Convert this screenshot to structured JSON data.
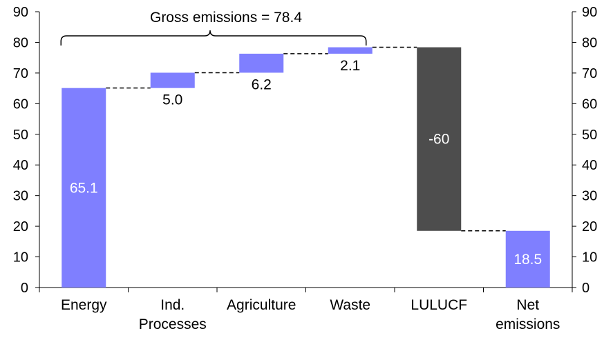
{
  "chart_data": {
    "type": "bar",
    "subtype": "waterfall",
    "title": "",
    "xlabel": "",
    "ylabel": "",
    "ylim": [
      0,
      90
    ],
    "yticks": [
      0,
      10,
      20,
      30,
      40,
      50,
      60,
      70,
      80,
      90
    ],
    "y_axes": [
      "left",
      "right"
    ],
    "grid": false,
    "legend": "none",
    "categories": [
      [
        "Energy"
      ],
      [
        "Ind.",
        "Processes"
      ],
      [
        "Agriculture"
      ],
      [
        "Waste"
      ],
      [
        "LULUCF"
      ],
      [
        "Net",
        "emissions"
      ]
    ],
    "bars": [
      {
        "start": 0,
        "end": 65.1,
        "label": "65.1",
        "label_position": "inside",
        "color": "#7f7fff"
      },
      {
        "start": 65.1,
        "end": 70.1,
        "label": "5.0",
        "label_position": "below",
        "color": "#7f7fff"
      },
      {
        "start": 70.1,
        "end": 76.3,
        "label": "6.2",
        "label_position": "below",
        "color": "#7f7fff"
      },
      {
        "start": 76.3,
        "end": 78.4,
        "label": "2.1",
        "label_position": "below",
        "color": "#7f7fff"
      },
      {
        "start": 78.4,
        "end": 18.5,
        "label": "-60",
        "label_position": "inside",
        "color": "#4d4d4d"
      },
      {
        "start": 0,
        "end": 18.5,
        "label": "18.5",
        "label_position": "inside",
        "color": "#7f7fff"
      }
    ],
    "annotation": {
      "text": "Gross emissions = 78.4",
      "spans_categories": [
        0,
        3
      ]
    },
    "connectors": "dashed"
  }
}
